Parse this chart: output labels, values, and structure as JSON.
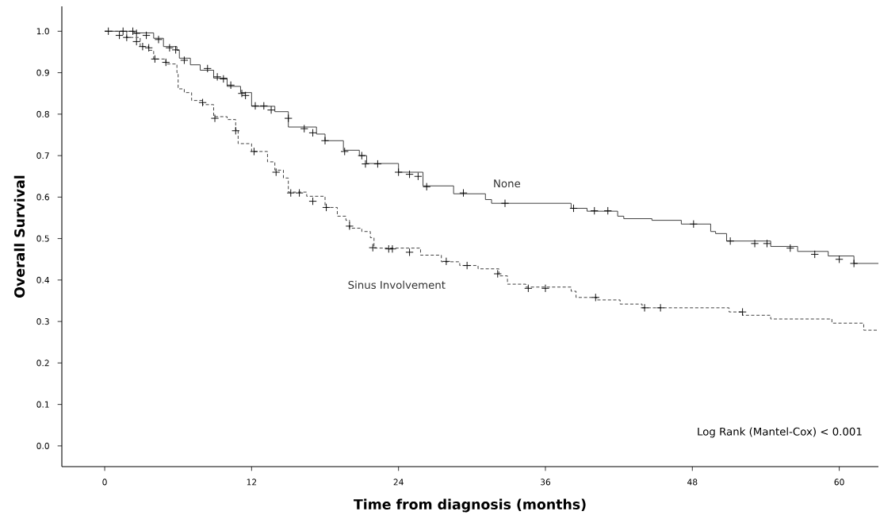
{
  "chart_data": {
    "type": "step",
    "xlabel": "Time from diagnosis (months)",
    "ylabel": "Overall Survival",
    "xlim": [
      -3.5,
      63.2
    ],
    "ylim": [
      -0.05,
      1.06
    ],
    "xticks": [
      0,
      12,
      24,
      36,
      48,
      60
    ],
    "yticks": [
      {
        "value": 0,
        "label": "0.0"
      },
      {
        "value": 0.1,
        "label": "0.1"
      },
      {
        "value": 0.2,
        "label": "0.2"
      },
      {
        "value": 0.3,
        "label": "0.3"
      },
      {
        "value": 0.4,
        "label": "0.4"
      },
      {
        "value": 0.5,
        "label": "0.5"
      },
      {
        "value": 0.6,
        "label": "0.6"
      },
      {
        "value": 0.7,
        "label": "0.7"
      },
      {
        "value": 0.8,
        "label": "0.8"
      },
      {
        "value": 0.9,
        "label": "0.9"
      },
      {
        "value": 1.0,
        "label": "1.0"
      }
    ],
    "grid": false,
    "legend": false,
    "annotations": [
      "Log Rank (Mantel-Cox) < 0.001"
    ],
    "series": [
      {
        "name": "None",
        "color": "#333333",
        "line_style": "solid",
        "x": [
          0,
          2.4,
          4.0,
          4.8,
          5.9,
          6.1,
          7.0,
          7.8,
          8.9,
          10.0,
          11.1,
          12.0,
          13.9,
          15.0,
          17.3,
          18.0,
          19.5,
          20.8,
          21.4,
          24.0,
          26.0,
          28.5,
          31.1,
          31.6,
          38.1,
          39.4,
          41.9,
          42.4,
          44.7,
          47.1,
          49.5,
          49.9,
          50.8,
          54.4,
          56.6,
          59.1,
          61.2,
          63.2
        ],
        "values": [
          1.0,
          0.996,
          0.983,
          0.963,
          0.954,
          0.935,
          0.919,
          0.906,
          0.887,
          0.867,
          0.852,
          0.819,
          0.806,
          0.769,
          0.752,
          0.736,
          0.713,
          0.7,
          0.681,
          0.66,
          0.627,
          0.608,
          0.594,
          0.585,
          0.573,
          0.566,
          0.554,
          0.548,
          0.544,
          0.535,
          0.517,
          0.512,
          0.494,
          0.481,
          0.469,
          0.458,
          0.44,
          0.44
        ]
      },
      {
        "name": "Sinus Involvement",
        "color": "#333333",
        "line_style": "dashed",
        "x": [
          0,
          1.8,
          2.9,
          3.6,
          4.0,
          5.0,
          5.9,
          6.0,
          6.5,
          7.1,
          8.0,
          8.9,
          10.0,
          10.7,
          10.9,
          12.0,
          13.3,
          13.9,
          14.6,
          15.0,
          16.5,
          18.0,
          19.0,
          19.7,
          20.0,
          21.0,
          21.7,
          22.0,
          25.8,
          27.5,
          29.0,
          30.5,
          32.2,
          32.9,
          34.4,
          38.1,
          38.5,
          40.2,
          42.1,
          43.9,
          51.0,
          52.1,
          54.4,
          59.4,
          62.0,
          63.2
        ],
        "values": [
          1.0,
          0.985,
          0.963,
          0.954,
          0.933,
          0.921,
          0.9,
          0.861,
          0.852,
          0.833,
          0.823,
          0.794,
          0.787,
          0.762,
          0.729,
          0.71,
          0.685,
          0.665,
          0.646,
          0.612,
          0.602,
          0.575,
          0.554,
          0.544,
          0.525,
          0.517,
          0.502,
          0.477,
          0.46,
          0.444,
          0.435,
          0.427,
          0.41,
          0.39,
          0.383,
          0.373,
          0.358,
          0.352,
          0.342,
          0.333,
          0.323,
          0.315,
          0.306,
          0.296,
          0.279,
          0.279
        ]
      },
      {
        "type": "scatter",
        "marker": "cross",
        "color": "#000000",
        "x": [
          0.3,
          1.5,
          2.3,
          2.6,
          3.4,
          4.4,
          5.3,
          5.8,
          6.5,
          8.4,
          9.2,
          9.7,
          10.3,
          11.2,
          11.5,
          12.3,
          13.0,
          13.6,
          15.0,
          16.3,
          17.0,
          18.0,
          19.6,
          21.0,
          21.3,
          22.3,
          24.0,
          24.9,
          25.6,
          26.3,
          29.3,
          32.7,
          38.3,
          40.0,
          41.1,
          48.1,
          51.1,
          53.1,
          54.1,
          56.0,
          58.0,
          60.0,
          61.2
        ],
        "values": [
          1.0,
          1.0,
          1.0,
          0.995,
          0.99,
          0.98,
          0.96,
          0.955,
          0.93,
          0.91,
          0.89,
          0.885,
          0.87,
          0.85,
          0.845,
          0.82,
          0.82,
          0.81,
          0.79,
          0.765,
          0.755,
          0.736,
          0.71,
          0.7,
          0.68,
          0.68,
          0.66,
          0.655,
          0.65,
          0.625,
          0.61,
          0.585,
          0.573,
          0.567,
          0.567,
          0.535,
          0.494,
          0.488,
          0.488,
          0.477,
          0.462,
          0.45,
          0.44
        ]
      },
      {
        "type": "scatter",
        "marker": "cross",
        "color": "#000000",
        "x": [
          1.2,
          1.8,
          2.6,
          3.1,
          3.6,
          4.1,
          5.0,
          8.0,
          9.0,
          10.7,
          12.2,
          14.0,
          15.2,
          15.9,
          17.0,
          18.1,
          20.0,
          21.9,
          23.2,
          23.5,
          24.9,
          27.9,
          29.6,
          32.1,
          34.6,
          36.0,
          40.1,
          44.1,
          45.4,
          52.1
        ],
        "values": [
          0.99,
          0.985,
          0.975,
          0.963,
          0.96,
          0.933,
          0.925,
          0.828,
          0.79,
          0.76,
          0.71,
          0.66,
          0.61,
          0.61,
          0.59,
          0.575,
          0.53,
          0.478,
          0.475,
          0.475,
          0.467,
          0.445,
          0.435,
          0.415,
          0.38,
          0.38,
          0.358,
          0.333,
          0.333,
          0.323
        ]
      }
    ]
  }
}
